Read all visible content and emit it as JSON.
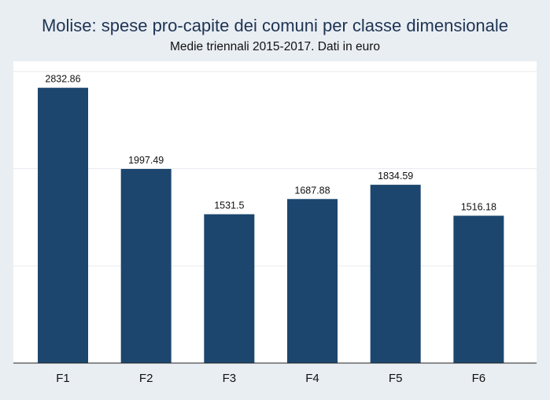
{
  "chart_data": {
    "type": "bar",
    "title": "Molise: spese pro-capite dei comuni per classe dimensionale",
    "subtitle": "Medie triennali 2015-2017. Dati in euro",
    "categories": [
      "F1",
      "F2",
      "F3",
      "F4",
      "F5",
      "F6"
    ],
    "values": [
      2832.86,
      1997.49,
      1531.5,
      1687.88,
      1834.59,
      1516.18
    ],
    "value_labels": [
      "2832.86",
      "1997.49",
      "1531.5",
      "1687.88",
      "1834.59",
      "1516.18"
    ],
    "xlabel": "",
    "ylabel": "",
    "ylim": [
      0,
      3000
    ],
    "y_gridlines": [
      1000,
      2000,
      3000
    ],
    "y_tick_labels_shown": false,
    "grid": true,
    "legend": "none",
    "colors": {
      "bar": "#1c466e",
      "plot_background": "#ffffff",
      "outer_background": "#e9eef3",
      "title": "#1f3453",
      "gridline": "#e6ebf0"
    }
  }
}
